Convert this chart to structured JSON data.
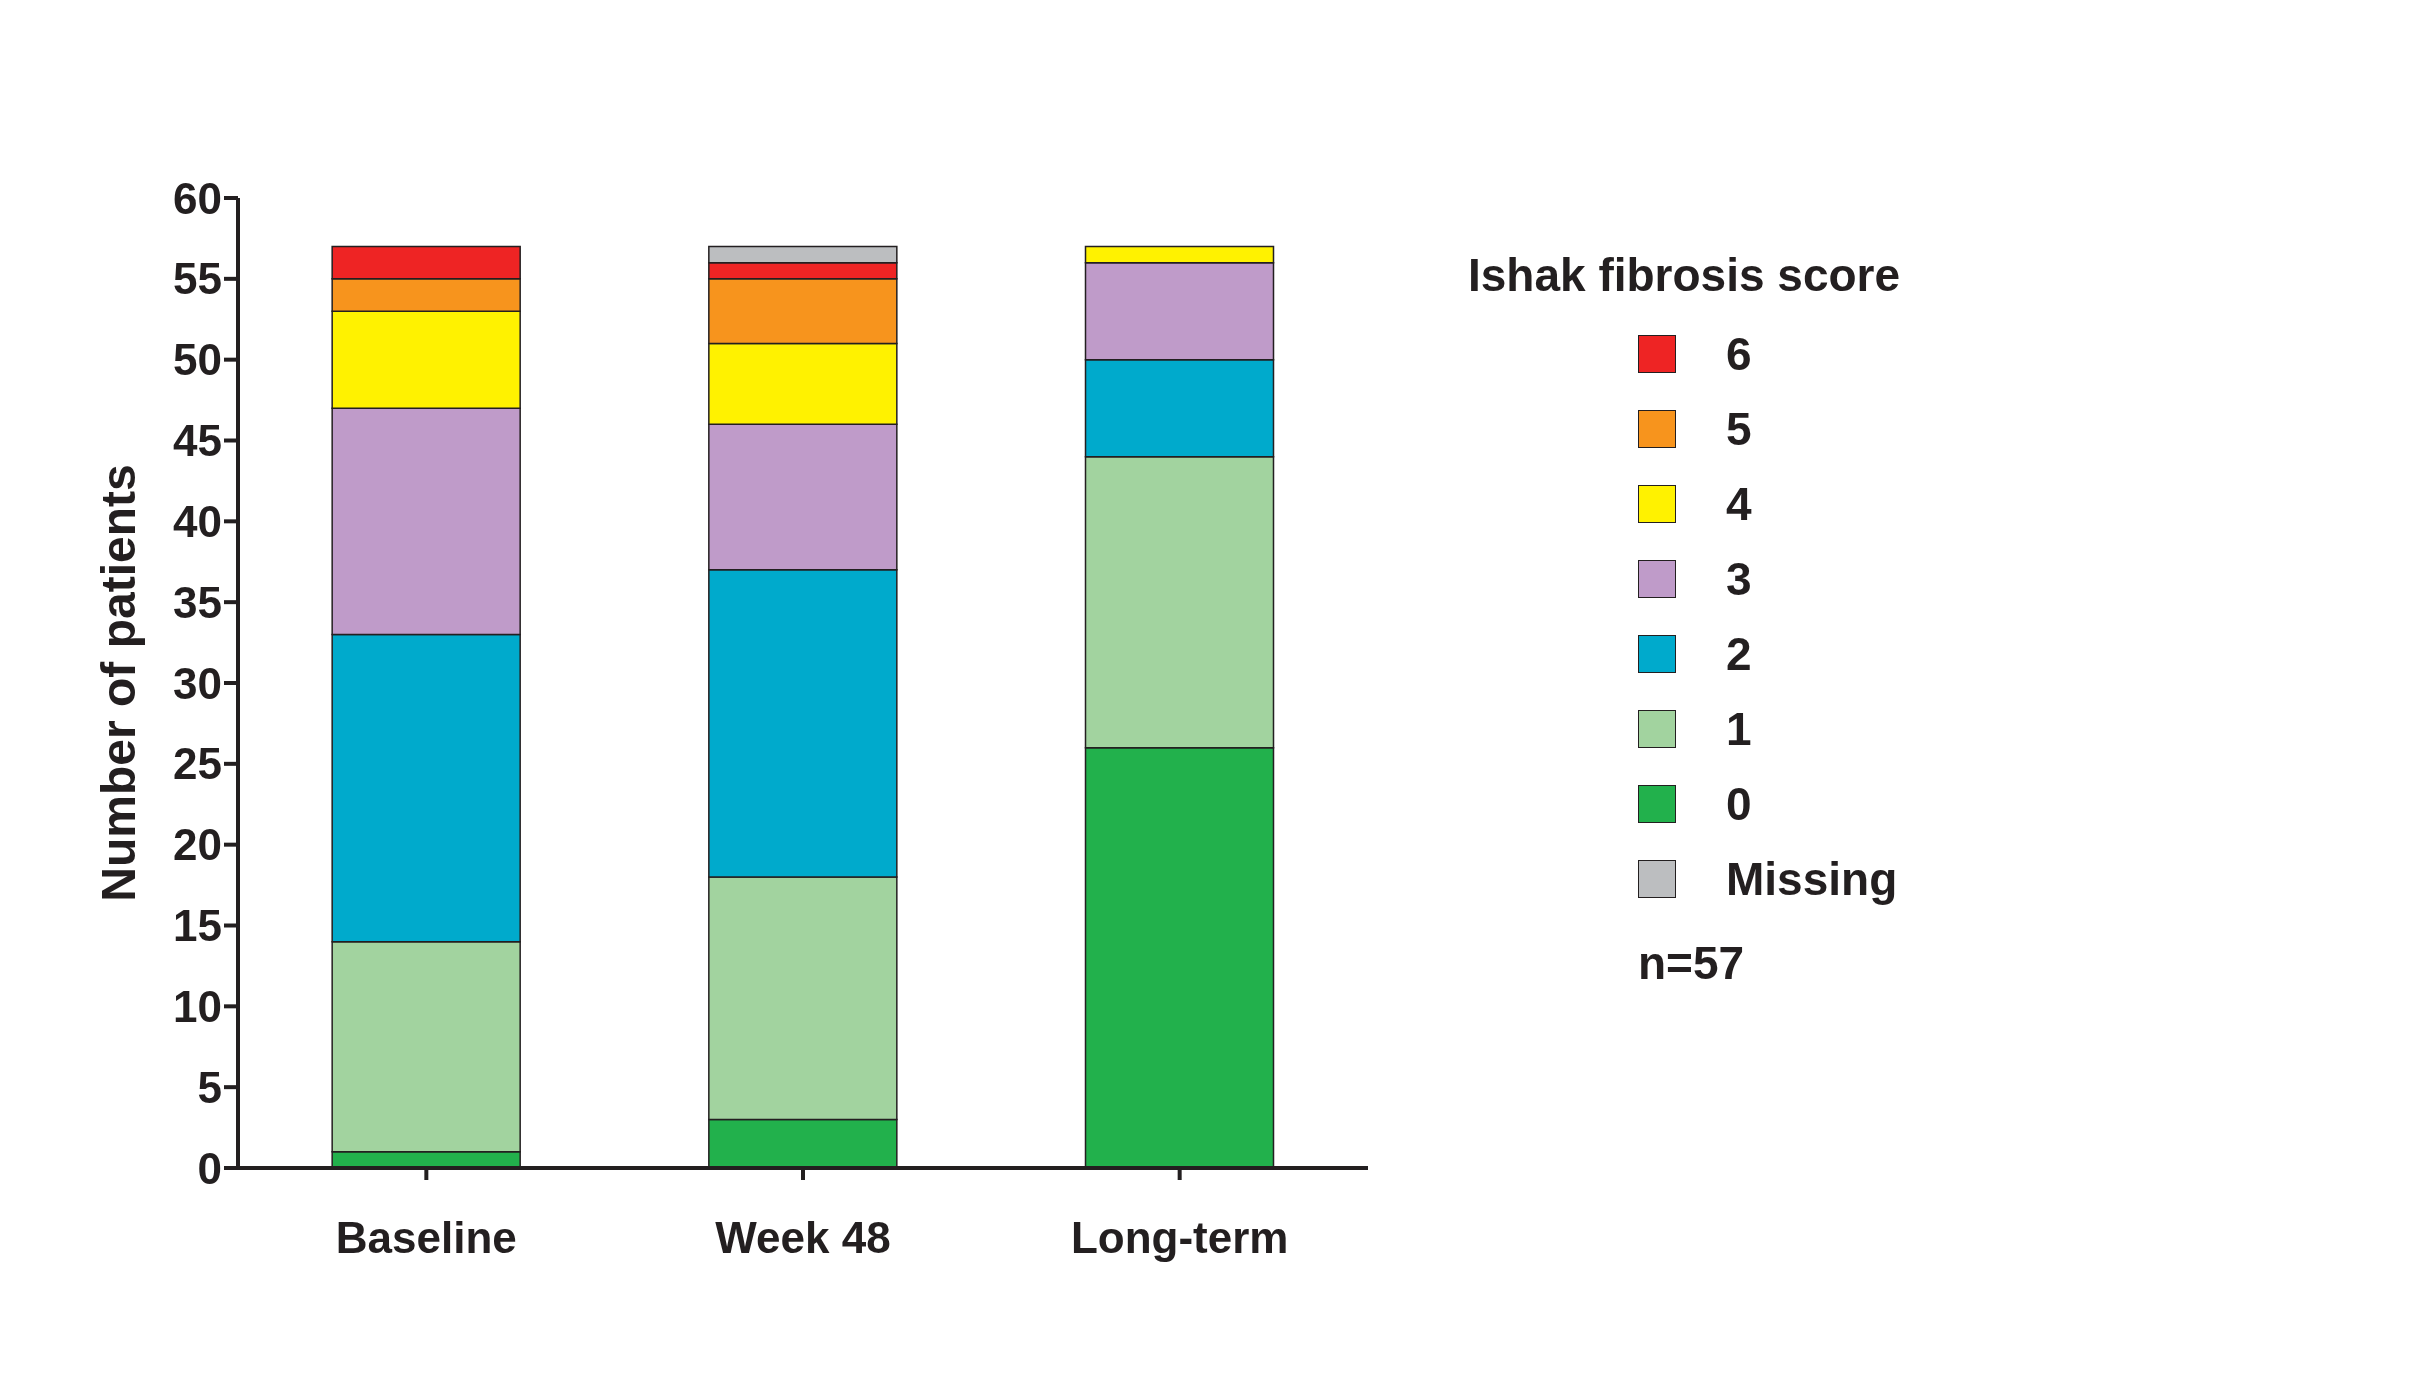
{
  "chart_data": {
    "type": "bar",
    "stacked": true,
    "ylabel": "Number of patients",
    "legend_title": "Ishak fibrosis score",
    "legend": "right",
    "categories": [
      "Baseline",
      "Week 48",
      "Long-term"
    ],
    "ylim": [
      0,
      60
    ],
    "yticks": [
      0,
      5,
      10,
      15,
      20,
      25,
      30,
      35,
      40,
      45,
      50,
      55,
      60
    ],
    "series": [
      {
        "name": "0",
        "color": "#22b14c",
        "values": [
          1,
          3,
          26
        ]
      },
      {
        "name": "1",
        "color": "#a2d39f",
        "values": [
          13,
          15,
          18
        ]
      },
      {
        "name": "2",
        "color": "#00aacc",
        "values": [
          19,
          19,
          6
        ]
      },
      {
        "name": "3",
        "color": "#bf9bc9",
        "values": [
          14,
          9,
          6
        ]
      },
      {
        "name": "4",
        "color": "#fff200",
        "values": [
          6,
          5,
          1
        ]
      },
      {
        "name": "5",
        "color": "#f7941d",
        "values": [
          2,
          4,
          0
        ]
      },
      {
        "name": "6",
        "color": "#ee2424",
        "values": [
          2,
          1,
          0
        ]
      },
      {
        "name": "Missing",
        "color": "#bcbec0",
        "values": [
          0,
          1,
          0
        ]
      }
    ],
    "annotations": [
      "n=57"
    ]
  }
}
